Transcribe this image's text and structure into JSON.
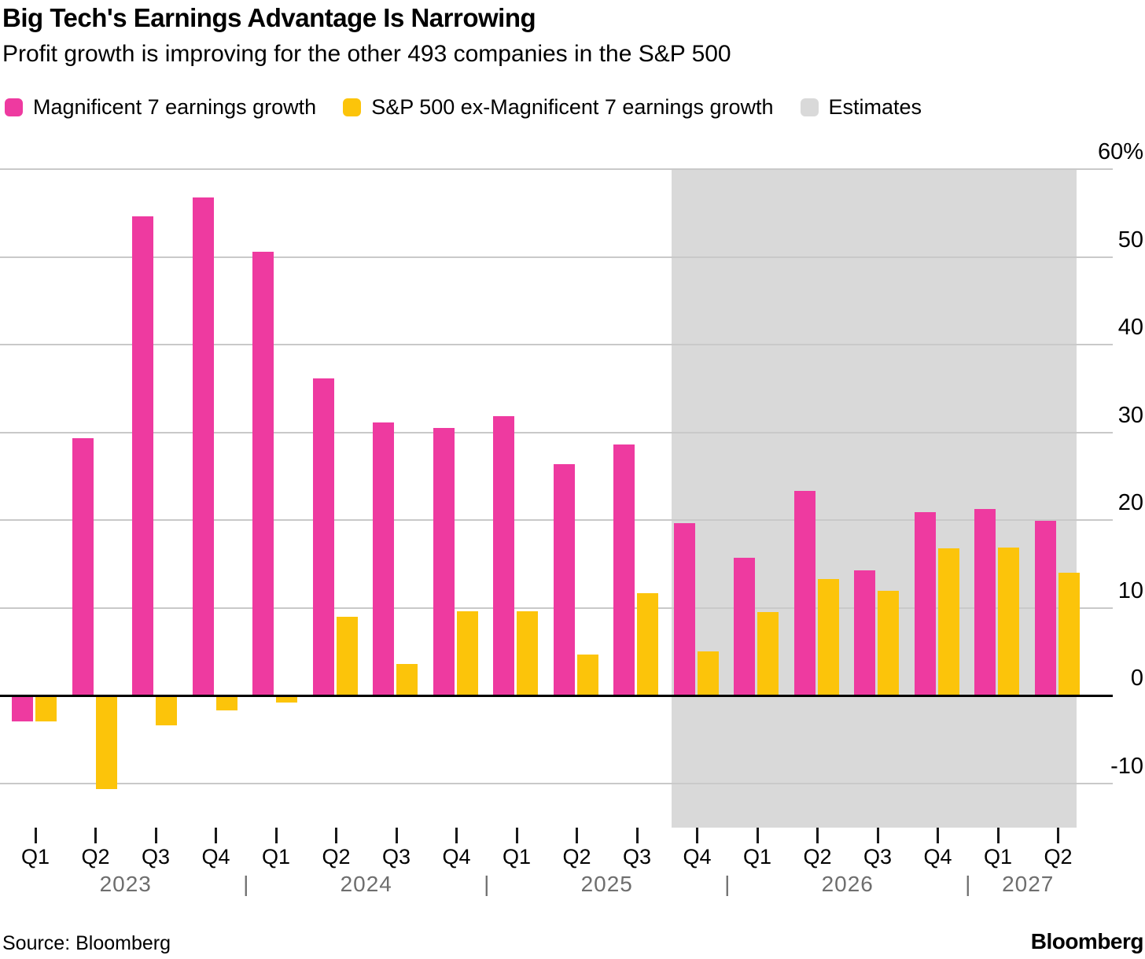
{
  "header": {
    "title": "Big Tech's Earnings Advantage Is Narrowing",
    "subtitle": "Profit growth is improving for the other 493 companies in the S&P 500"
  },
  "legend": {
    "items": [
      {
        "label": "Magnificent 7 earnings growth",
        "swatch": "magenta"
      },
      {
        "label": "S&P 500 ex-Magnificent 7 earnings growth",
        "swatch": "yellow"
      },
      {
        "label": "Estimates",
        "swatch": "gray"
      }
    ]
  },
  "chart_data": {
    "type": "bar",
    "title": "Big Tech's Earnings Advantage Is Narrowing",
    "subtitle": "Profit growth is improving for the other 493 companies in the S&P 500",
    "categories": [
      "Q1 2023",
      "Q2 2023",
      "Q3 2023",
      "Q4 2023",
      "Q1 2024",
      "Q2 2024",
      "Q3 2024",
      "Q4 2024",
      "Q1 2025",
      "Q2 2025",
      "Q3 2025",
      "Q4 2025",
      "Q1 2026",
      "Q2 2026",
      "Q3 2026",
      "Q4 2026",
      "Q1 2027",
      "Q2 2027"
    ],
    "series": [
      {
        "name": "Magnificent 7 earnings growth",
        "values": [
          -3.0,
          29.3,
          54.6,
          56.8,
          50.6,
          36.1,
          31.1,
          30.5,
          31.8,
          26.4,
          28.6,
          19.6,
          15.7,
          23.3,
          14.3,
          20.9,
          21.3,
          19.9
        ]
      },
      {
        "name": "S&P 500 ex-Magnificent 7 earnings growth",
        "values": [
          -3.0,
          -10.7,
          -3.4,
          -1.7,
          -0.8,
          9.0,
          3.6,
          9.6,
          9.6,
          4.7,
          11.7,
          5.0,
          9.5,
          13.3,
          11.9,
          16.8,
          16.9,
          14.0
        ]
      }
    ],
    "estimates": {
      "label": "Estimates",
      "start_category": "Q4 2025",
      "style": "gray shaded background"
    },
    "y_axis": {
      "side": "right",
      "ylim": [
        -15,
        60
      ],
      "ticks": [
        {
          "value": 60,
          "label": "60%"
        },
        {
          "value": 50,
          "label": "50"
        },
        {
          "value": 40,
          "label": "40"
        },
        {
          "value": 30,
          "label": "30"
        },
        {
          "value": 20,
          "label": "20"
        },
        {
          "value": 10,
          "label": "10"
        },
        {
          "value": 0,
          "label": "0"
        },
        {
          "value": -10,
          "label": "-10"
        }
      ],
      "grid": true,
      "zero_baseline": true
    },
    "x_axis": {
      "quarter_labels": [
        "Q1",
        "Q2",
        "Q3",
        "Q4",
        "Q1",
        "Q2",
        "Q3",
        "Q4",
        "Q1",
        "Q2",
        "Q3",
        "Q4",
        "Q1",
        "Q2",
        "Q3",
        "Q4",
        "Q1",
        "Q2"
      ],
      "years": [
        "2023",
        "2024",
        "2025",
        "2026",
        "2027"
      ],
      "year_separator": "|"
    },
    "legend_position": "top"
  },
  "footer": {
    "source": "Source: Bloomberg",
    "brand": "Bloomberg"
  },
  "colors": {
    "magenta": "#ee3aa0",
    "yellow": "#fcc40a",
    "gray": "#d9d9d9",
    "gridline": "#c9c9c9",
    "zero_line": "#000000",
    "year_text": "#6e6e6e",
    "background": "#ffffff"
  }
}
